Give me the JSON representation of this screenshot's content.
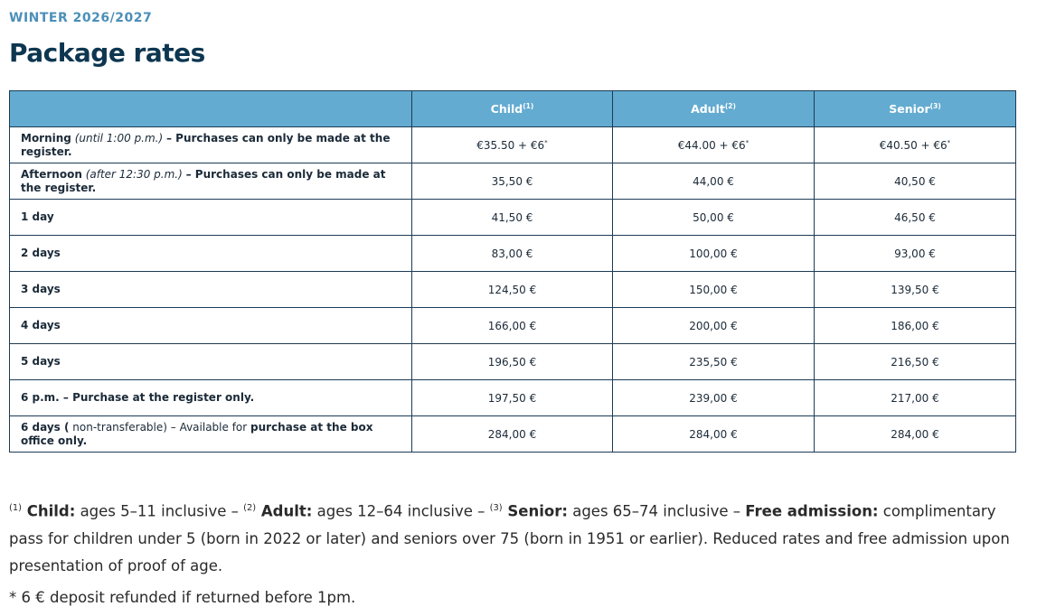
{
  "header": {
    "eyebrow": "WINTER 2026/2027",
    "title": "Package rates"
  },
  "table": {
    "columns": [
      {
        "label": "Child",
        "sup": "(1)"
      },
      {
        "label": "Adult",
        "sup": "(2)"
      },
      {
        "label": "Senior",
        "sup": "(3)"
      }
    ],
    "rows": [
      {
        "label": [
          {
            "text": "Morning",
            "style": "bold"
          },
          {
            "text": " (until 1:00 p.m.) ",
            "style": "italic"
          },
          {
            "text": "– Purchases can only be made at the register.",
            "style": "bold"
          }
        ],
        "cells": [
          {
            "text": "€35.50 + €6",
            "sup": "*"
          },
          {
            "text": "€44.00 + €6",
            "sup": "*"
          },
          {
            "text": "€40.50 + €6",
            "sup": "*"
          }
        ]
      },
      {
        "label": [
          {
            "text": "Afternoon",
            "style": "bold"
          },
          {
            "text": " (after 12:30 p.m.) ",
            "style": "italic"
          },
          {
            "text": "– Purchases can only be made at the register.",
            "style": "bold"
          }
        ],
        "cells": [
          "35,50 €",
          "44,00 €",
          "40,50 €"
        ]
      },
      {
        "label": [
          {
            "text": "1 day",
            "style": "bold"
          }
        ],
        "cells": [
          "41,50 €",
          "50,00 €",
          "46,50 €"
        ]
      },
      {
        "label": [
          {
            "text": "2 days",
            "style": "bold"
          }
        ],
        "cells": [
          "83,00 €",
          "100,00 €",
          "93,00 €"
        ]
      },
      {
        "label": [
          {
            "text": "3 days",
            "style": "bold"
          }
        ],
        "cells": [
          "124,50 €",
          "150,00 €",
          "139,50 €"
        ]
      },
      {
        "label": [
          {
            "text": "4 days",
            "style": "bold"
          }
        ],
        "cells": [
          "166,00 €",
          "200,00 €",
          "186,00 €"
        ]
      },
      {
        "label": [
          {
            "text": "5 days",
            "style": "bold"
          }
        ],
        "cells": [
          "196,50 €",
          "235,50 €",
          "216,50 €"
        ]
      },
      {
        "label": [
          {
            "text": "6 p.m. – Purchase at the register only.",
            "style": "bold"
          }
        ],
        "cells": [
          "197,50 €",
          "239,00 €",
          "217,00 €"
        ]
      },
      {
        "label": [
          {
            "text": "6 days (",
            "style": "bold"
          },
          {
            "text": " non-transferable) – Available for ",
            "style": "normal"
          },
          {
            "text": "purchase at the box office only.",
            "style": "bold"
          }
        ],
        "cells": [
          "284,00 €",
          "284,00 €",
          "284,00 €"
        ]
      }
    ]
  },
  "footnote": [
    {
      "text": "(1)",
      "style": "sup"
    },
    {
      "text": " Child:",
      "style": "bold"
    },
    {
      "text": " ages 5–11 inclusive – ",
      "style": "normal"
    },
    {
      "text": "(2)",
      "style": "sup"
    },
    {
      "text": " Adult:",
      "style": "bold"
    },
    {
      "text": " ages 12–64 inclusive – ",
      "style": "normal"
    },
    {
      "text": "(3)",
      "style": "sup"
    },
    {
      "text": " Senior:",
      "style": "bold"
    },
    {
      "text": " ages 65–74 inclusive – ",
      "style": "normal"
    },
    {
      "text": "Free admission:",
      "style": "bold"
    },
    {
      "text": " complimentary pass for children under 5 (born in 2022 or later) and seniors over 75 (born in 1951 or earlier). Reduced rates and free admission upon presentation of proof of age.",
      "style": "normal"
    }
  ],
  "note": "* 6 € deposit refunded if returned before 1pm."
}
